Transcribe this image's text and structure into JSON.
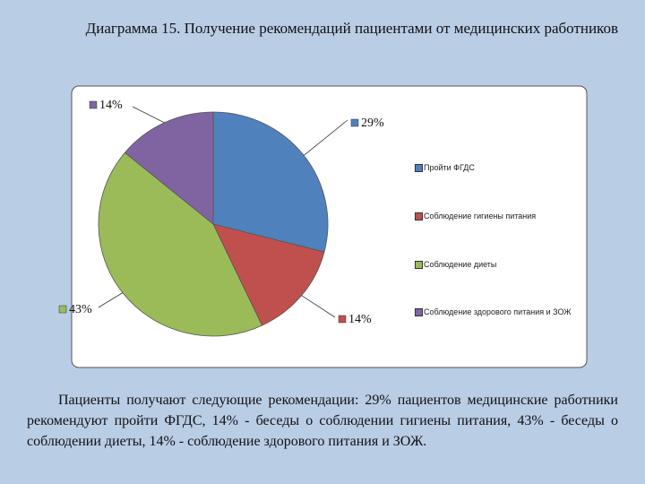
{
  "chart_data": {
    "type": "pie",
    "title": "Диаграмма 15. Получение рекомендаций пациентами от медицинских работников",
    "categories": [
      "Пройти ФГДС",
      "Соблюдение гигиены питания",
      "Соблюдение диеты",
      "Соблюдение здорового питания и ЗОЖ"
    ],
    "values": [
      29,
      14,
      43,
      14
    ],
    "value_labels": [
      "29%",
      "14%",
      "43%",
      "14%"
    ],
    "colors": [
      "#4f81bd",
      "#c0504d",
      "#9bbb59",
      "#8064a2"
    ]
  },
  "description": "Пациенты получают следующие рекомендации: 29% пациентов медицинские работники рекомендуют пройти ФГДС, 14% - беседы о соблюдении гигиены питания, 43% - беседы о соблюдении диеты, 14% - соблюдение здорового питания и ЗОЖ."
}
